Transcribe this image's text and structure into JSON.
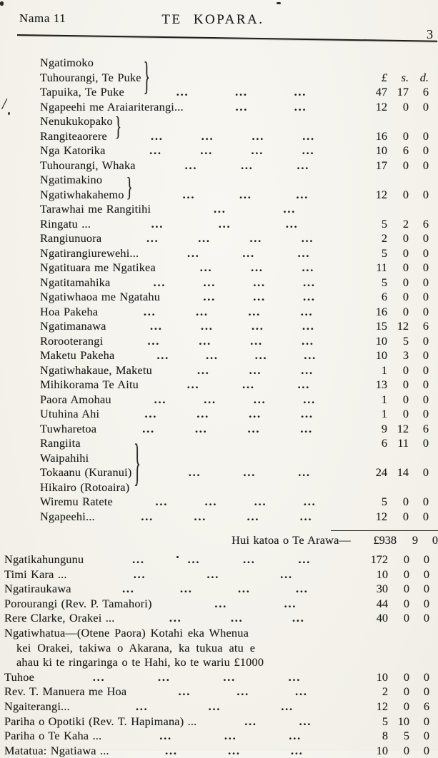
{
  "header": {
    "issue": "Nama 11",
    "title": "TE KOPARA.",
    "page_number": "3"
  },
  "cols": {
    "pounds": "£",
    "shillings": "s.",
    "pence": "d."
  },
  "brace_glyph": "}",
  "leader_dots": "...",
  "arawa": {
    "rows": [
      {
        "name": "Ngatimoko",
        "leaders": 0
      },
      {
        "name": "Tuhourangi, Te Puke",
        "leaders": 0,
        "brace": "b3",
        "cols_header": true
      },
      {
        "name": "Tapuika, Te Puke",
        "leaders": 3,
        "a": [
          "47",
          "17",
          "6"
        ]
      },
      {
        "name": "Ngapeehi me Araiariterangi...",
        "leaders": 2,
        "a": [
          "12",
          "0",
          "0"
        ]
      },
      {
        "name": "Nenukukopako",
        "leaders": 0,
        "brace": "b2d"
      },
      {
        "name": "Rangiteaorere",
        "leaders": 4,
        "a": [
          "16",
          "0",
          "0"
        ]
      },
      {
        "name": "Nga Katorika",
        "leaders": 4,
        "a": [
          "10",
          "6",
          "0"
        ]
      },
      {
        "name": "Tuhourangi, Whaka",
        "leaders": 3,
        "a": [
          "17",
          "0",
          "0"
        ]
      },
      {
        "name": "Ngatimakino",
        "leaders": 0
      },
      {
        "name": "Ngatiwhakahemo",
        "leaders": 3,
        "brace": "b2u",
        "a": [
          "12",
          "0",
          "0"
        ]
      },
      {
        "name": "Tarawhai me Rangitihi",
        "leaders": 2
      },
      {
        "name": "Ringatu ...",
        "leaders": 3,
        "a": [
          "5",
          "2",
          "6"
        ]
      },
      {
        "name": "Rangiunuora",
        "leaders": 4,
        "a": [
          "2",
          "0",
          "0"
        ]
      },
      {
        "name": "Ngatirangiurewehi...",
        "leaders": 3,
        "a": [
          "5",
          "0",
          "0"
        ]
      },
      {
        "name": "Ngatituara me Ngatikea",
        "leaders": 3,
        "a": [
          "11",
          "0",
          "0"
        ]
      },
      {
        "name": "Ngatitamahika",
        "leaders": 4,
        "a": [
          "5",
          "0",
          "0"
        ]
      },
      {
        "name": "Ngatiwhaoa me Ngatahu",
        "leaders": 3,
        "a": [
          "6",
          "0",
          "0"
        ]
      },
      {
        "name": "Hoa Pakeha",
        "leaders": 4,
        "a": [
          "16",
          "0",
          "0"
        ]
      },
      {
        "name": "Ngatimanawa",
        "leaders": 4,
        "a": [
          "15",
          "12",
          "6"
        ]
      },
      {
        "name": "Rorooterangi",
        "leaders": 4,
        "a": [
          "10",
          "5",
          "0"
        ]
      },
      {
        "name": "Maketu Pakeha",
        "leaders": 4,
        "a": [
          "10",
          "3",
          "0"
        ]
      },
      {
        "name": "Ngatiwhakaue, Maketu",
        "leaders": 3,
        "a": [
          "1",
          "0",
          "0"
        ]
      },
      {
        "name": "Mihikorama Te Aitu",
        "leaders": 3,
        "a": [
          "13",
          "0",
          "0"
        ]
      },
      {
        "name": "Paora Amohau",
        "leaders": 4,
        "a": [
          "1",
          "0",
          "0"
        ]
      },
      {
        "name": "Utuhina Ahi",
        "leaders": 4,
        "a": [
          "1",
          "0",
          "0"
        ]
      },
      {
        "name": "Tuwharetoa",
        "leaders": 4,
        "a": [
          "9",
          "12",
          "6"
        ]
      },
      {
        "name": "Rangiita",
        "leaders": 0,
        "a": [
          "6",
          "11",
          "0"
        ]
      },
      {
        "name": "Waipahihi",
        "leaders": 0
      },
      {
        "name": "Tokaanu (Kuranui)",
        "leaders": 3,
        "brace": "b4u",
        "a": [
          "24",
          "14",
          "0"
        ]
      },
      {
        "name": "Hikairo (Rotoaira)",
        "leaders": 0
      },
      {
        "name": "Wiremu Ratete",
        "leaders": 4,
        "a": [
          "5",
          "0",
          "0"
        ]
      },
      {
        "name": "Ngapeehi...",
        "leaders": 4,
        "a": [
          "12",
          "0",
          "0"
        ]
      }
    ],
    "total": {
      "label": "Hui katoa o Te Arawa—",
      "pounds": "£938",
      "shillings": "9",
      "pence": "0"
    }
  },
  "others": {
    "rows": [
      {
        "name": "Ngatikahungunu",
        "leaders": 4,
        "a": [
          "172",
          "0",
          "0"
        ]
      },
      {
        "name": "Timi Kara ...",
        "leaders": 3,
        "a": [
          "10",
          "0",
          "0"
        ]
      },
      {
        "name": "Ngatiraukawa",
        "leaders": 4,
        "a": [
          "30",
          "0",
          "0"
        ]
      },
      {
        "name": "Porourangi (Rev. P. Tamahori)",
        "leaders": 2,
        "a": [
          "44",
          "0",
          "0"
        ]
      },
      {
        "name": "Rere Clarke, Orakei ...",
        "leaders": 3,
        "a": [
          "40",
          "0",
          "0"
        ]
      },
      {
        "para": [
          "Ngatiwhatua—(Otene Paora) Kotahi eka Whenua",
          "kei Orakei, takiwa o Akarana, ka tukua atu e",
          "ahau ki te ringaringa o te Hahi, ko te wariu £1000"
        ]
      },
      {
        "name": "Tuhoe",
        "leaders": 4,
        "a": [
          "10",
          "0",
          "0"
        ]
      },
      {
        "name": "Rev. T. Manuera me Hoa",
        "leaders": 3,
        "a": [
          "2",
          "0",
          "0"
        ]
      },
      {
        "name": "Ngaiterangi...",
        "leaders": 3,
        "a": [
          "12",
          "0",
          "6"
        ]
      },
      {
        "name": "Pariha o Opotiki (Rev. T. Hapimana) ...",
        "leaders": 2,
        "a": [
          "5",
          "10",
          "0"
        ]
      },
      {
        "name": "Pariha o Te Kaha ...",
        "leaders": 3,
        "a": [
          "8",
          "5",
          "0"
        ]
      },
      {
        "name": "Matatua: Ngatiawa ...",
        "leaders": 3,
        "a": [
          "10",
          "0",
          "0"
        ]
      }
    ]
  }
}
